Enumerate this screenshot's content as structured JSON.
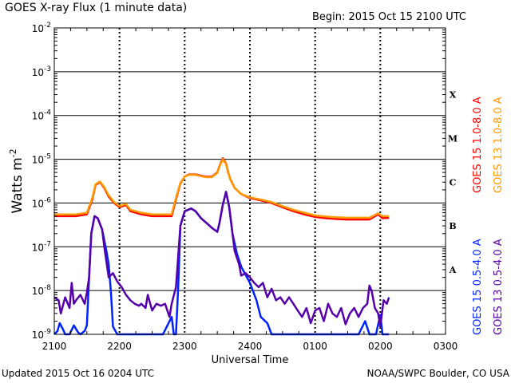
{
  "chart_data": {
    "type": "line",
    "title": "GOES X-ray Flux (1 minute data)",
    "subtitle": "Begin: 2015 Oct 15 2100 UTC",
    "ylabel": "Watts m",
    "ylabel_sup": "-2",
    "xlabel": "Universal Time",
    "footer_left": "Updated 2015 Oct 16 0204 UTC",
    "footer_right": "NOAA/SWPC Boulder, CO USA",
    "yscale": "log",
    "ylim": [
      1e-09,
      0.01
    ],
    "xlim": [
      0,
      360
    ],
    "x_units": "minutes since 2015-10-15 2100 UTC",
    "y_ticks": [
      {
        "base": "10",
        "exp": "-9",
        "value": 1e-09
      },
      {
        "base": "10",
        "exp": "-8",
        "value": 1e-08
      },
      {
        "base": "10",
        "exp": "-7",
        "value": 1e-07
      },
      {
        "base": "10",
        "exp": "-6",
        "value": 1e-06
      },
      {
        "base": "10",
        "exp": "-5",
        "value": 1e-05
      },
      {
        "base": "10",
        "exp": "-4",
        "value": 0.0001
      },
      {
        "base": "10",
        "exp": "-3",
        "value": 0.001
      },
      {
        "base": "10",
        "exp": "-2",
        "value": 0.01
      }
    ],
    "x_ticks": [
      {
        "label": "2100",
        "x": 0
      },
      {
        "label": "2200",
        "x": 60
      },
      {
        "label": "2300",
        "x": 120
      },
      {
        "label": "2400",
        "x": 180
      },
      {
        "label": "0100",
        "x": 240
      },
      {
        "label": "0200",
        "x": 300
      },
      {
        "label": "0300",
        "x": 360
      }
    ],
    "flare_classes": [
      {
        "label": "A",
        "value": 3e-08
      },
      {
        "label": "B",
        "value": 3e-07
      },
      {
        "label": "C",
        "value": 3e-06
      },
      {
        "label": "M",
        "value": 3e-05
      },
      {
        "label": "X",
        "value": 0.0003
      }
    ],
    "grid": true,
    "legend_placement": "right",
    "series": [
      {
        "name": "GOES 15 1.0-8.0 A",
        "color": "#ff0000",
        "x": [
          0,
          10,
          20,
          30,
          35,
          38,
          42,
          46,
          50,
          55,
          60,
          66,
          70,
          80,
          90,
          100,
          108,
          112,
          116,
          120,
          124,
          130,
          135,
          140,
          145,
          150,
          152,
          155,
          158,
          160,
          162,
          166,
          172,
          180,
          190,
          200,
          210,
          220,
          230,
          240,
          250,
          260,
          270,
          280,
          290,
          298,
          302,
          308
        ],
        "values": [
          5e-07,
          5e-07,
          5e-07,
          5.5e-07,
          1.2e-06,
          2.6e-06,
          3e-06,
          2.2e-06,
          1.4e-06,
          1e-06,
          8e-07,
          9e-07,
          6.5e-07,
          5.5e-07,
          5e-07,
          5e-07,
          5e-07,
          1.2e-06,
          2.8e-06,
          4e-06,
          4.5e-06,
          4.5e-06,
          4.2e-06,
          4e-06,
          4e-06,
          5e-06,
          7e-06,
          1.05e-05,
          8e-06,
          5e-06,
          3.5e-06,
          2.2e-06,
          1.6e-06,
          1.3e-06,
          1.15e-06,
          1e-06,
          8e-07,
          6.5e-07,
          5.5e-07,
          4.8e-07,
          4.5e-07,
          4.3e-07,
          4.2e-07,
          4.2e-07,
          4.2e-07,
          5.5e-07,
          4.5e-07,
          4.6e-07
        ]
      },
      {
        "name": "GOES 13 1.0-8.0 A",
        "color": "#ff9900",
        "x": [
          0,
          10,
          20,
          30,
          35,
          38,
          42,
          46,
          50,
          55,
          60,
          66,
          70,
          80,
          90,
          100,
          108,
          112,
          116,
          120,
          124,
          130,
          135,
          140,
          145,
          150,
          152,
          155,
          158,
          160,
          162,
          166,
          172,
          180,
          190,
          200,
          210,
          220,
          230,
          240,
          250,
          260,
          270,
          280,
          290,
          298,
          302,
          308
        ],
        "values": [
          5.5e-07,
          5.5e-07,
          5.5e-07,
          6e-07,
          1.3e-06,
          2.7e-06,
          3.1e-06,
          2.3e-06,
          1.5e-06,
          1.05e-06,
          8.5e-07,
          9.5e-07,
          7e-07,
          6e-07,
          5.5e-07,
          5.5e-07,
          5.5e-07,
          1.3e-06,
          2.9e-06,
          4e-06,
          4.4e-06,
          4.4e-06,
          4.1e-06,
          3.9e-06,
          3.9e-06,
          4.9e-06,
          6.8e-06,
          1e-05,
          7.8e-06,
          4.9e-06,
          3.4e-06,
          2.2e-06,
          1.6e-06,
          1.35e-06,
          1.2e-06,
          1.05e-06,
          8.5e-07,
          7e-07,
          6e-07,
          5.2e-07,
          4.9e-07,
          4.7e-07,
          4.6e-07,
          4.6e-07,
          4.6e-07,
          5.8e-07,
          5e-07,
          5e-07
        ]
      },
      {
        "name": "GOES 15 0.5-4.0 A",
        "color": "#0022ff",
        "x": [
          0,
          3,
          5,
          8,
          10,
          14,
          18,
          22,
          24,
          28,
          30,
          32,
          34,
          37,
          40,
          44,
          48,
          50,
          52,
          54,
          58,
          64,
          70,
          80,
          90,
          100,
          108,
          110,
          112,
          114,
          116,
          120,
          126,
          130,
          135,
          140,
          145,
          150,
          152,
          155,
          158,
          161,
          164,
          168,
          172,
          180,
          186,
          190,
          196,
          200,
          210,
          220,
          230,
          240,
          250,
          260,
          270,
          280,
          286,
          290,
          296,
          300,
          302,
          305,
          308
        ],
        "values": [
          1e-09,
          1.2e-09,
          1.8e-09,
          1.3e-09,
          1e-09,
          1e-09,
          1.6e-09,
          1.1e-09,
          1e-09,
          1.2e-09,
          1.6e-09,
          2e-08,
          2e-07,
          5e-07,
          4.5e-07,
          2.5e-07,
          8e-08,
          4e-08,
          1e-08,
          1.5e-09,
          1e-09,
          1e-09,
          1e-09,
          1e-09,
          1e-09,
          1e-09,
          2.5e-09,
          1e-09,
          1e-09,
          1.2e-08,
          3e-07,
          6.5e-07,
          7.5e-07,
          6.5e-07,
          4.5e-07,
          3.5e-07,
          2.7e-07,
          2.2e-07,
          3.5e-07,
          9e-07,
          1.8e-06,
          8e-07,
          2e-07,
          7e-08,
          3.5e-08,
          1.5e-08,
          6e-09,
          2.5e-09,
          1.8e-09,
          1e-09,
          1e-09,
          1e-09,
          1e-09,
          1e-09,
          1e-09,
          1e-09,
          1e-09,
          1e-09,
          2e-09,
          1e-09,
          1e-09,
          2.8e-09,
          1e-09,
          1e-09,
          1e-09
        ]
      },
      {
        "name": "GOES 13 0.5-4.0 A",
        "color": "#5500aa",
        "x": [
          0,
          4,
          6,
          10,
          14,
          16,
          18,
          20,
          24,
          28,
          30,
          32,
          34,
          37,
          40,
          44,
          46,
          50,
          54,
          58,
          62,
          66,
          70,
          74,
          78,
          80,
          84,
          86,
          90,
          94,
          98,
          102,
          104,
          106,
          108,
          112,
          116,
          120,
          126,
          130,
          135,
          140,
          145,
          150,
          152,
          155,
          158,
          161,
          164,
          166,
          170,
          172,
          176,
          180,
          184,
          188,
          192,
          196,
          200,
          204,
          208,
          212,
          216,
          220,
          224,
          228,
          232,
          236,
          240,
          244,
          248,
          252,
          256,
          260,
          264,
          268,
          272,
          276,
          280,
          284,
          288,
          290,
          292,
          295,
          298,
          300,
          303,
          306,
          308
        ],
        "values": [
          7e-09,
          6e-09,
          3e-09,
          7e-09,
          4e-09,
          1.5e-08,
          5e-09,
          6e-09,
          8e-09,
          5e-09,
          9e-09,
          2e-08,
          2e-07,
          5e-07,
          4.5e-07,
          2.5e-07,
          1e-07,
          2e-08,
          2.5e-08,
          1.6e-08,
          1.2e-08,
          8e-09,
          6e-09,
          5e-09,
          4.5e-09,
          5e-09,
          4e-09,
          8e-09,
          3.5e-09,
          5e-09,
          4.5e-09,
          5e-09,
          3.5e-09,
          2.5e-09,
          5e-09,
          1.2e-08,
          3e-07,
          6.5e-07,
          7.5e-07,
          6.5e-07,
          4.5e-07,
          3.5e-07,
          2.7e-07,
          2.2e-07,
          3.5e-07,
          9e-07,
          1.8e-06,
          8e-07,
          2e-07,
          8e-08,
          4e-08,
          2.2e-08,
          2.5e-08,
          2e-08,
          1.5e-08,
          1.2e-08,
          1.5e-08,
          7e-09,
          1.1e-08,
          6e-09,
          7e-09,
          5e-09,
          7e-09,
          5e-09,
          3.5e-09,
          2.5e-09,
          4e-09,
          1.8e-09,
          3.5e-09,
          4e-09,
          2e-09,
          5e-09,
          3e-09,
          2.5e-09,
          4e-09,
          1.7e-09,
          3e-09,
          4e-09,
          2.5e-09,
          4e-09,
          5e-09,
          1.3e-08,
          1e-08,
          4e-09,
          3e-09,
          1.5e-09,
          6e-09,
          5e-09,
          7e-09
        ]
      }
    ]
  }
}
